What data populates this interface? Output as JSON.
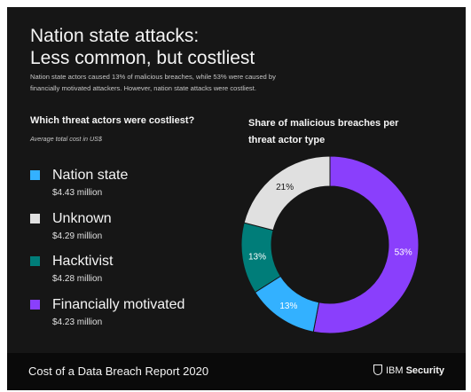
{
  "header": {
    "title_line1": "Nation state attacks:",
    "title_line2": "Less common, but costliest",
    "intro_line1": "Nation state actors caused 13% of malicious breaches, while 53% were caused by",
    "intro_line2": "financially motivated attackers. However, nation state attacks were costliest."
  },
  "left": {
    "heading": "Which threat actors were costliest?",
    "subheading": "Average total cost in US$",
    "items": [
      {
        "name": "Nation state",
        "cost": "$4.43 million",
        "color": "#33b1ff"
      },
      {
        "name": "Unknown",
        "cost": "$4.29 million",
        "color": "#e0e0e0"
      },
      {
        "name": "Hacktivist",
        "cost": "$4.28 million",
        "color": "#007d79"
      },
      {
        "name": "Financially motivated",
        "cost": "$4.23 million",
        "color": "#8a3ffc"
      }
    ]
  },
  "right": {
    "heading_line1": "Share of malicious breaches per",
    "heading_line2": "threat actor type"
  },
  "chart_data": {
    "type": "pie",
    "title": "Share of malicious breaches per threat actor type",
    "categories": [
      "Financially motivated",
      "Nation state",
      "Hacktivist",
      "Unknown"
    ],
    "values": [
      53,
      13,
      13,
      21
    ],
    "labels": [
      "53%",
      "13%",
      "13%",
      "21%"
    ],
    "colors": [
      "#8a3ffc",
      "#33b1ff",
      "#007d79",
      "#e0e0e0"
    ],
    "label_colors": [
      "#ffffff",
      "#ffffff",
      "#ffffff",
      "#161616"
    ],
    "donut": true
  },
  "footer": {
    "report_title": "Cost of a Data Breach Report 2020",
    "brand_prefix": "IBM",
    "brand_name": "Security"
  }
}
